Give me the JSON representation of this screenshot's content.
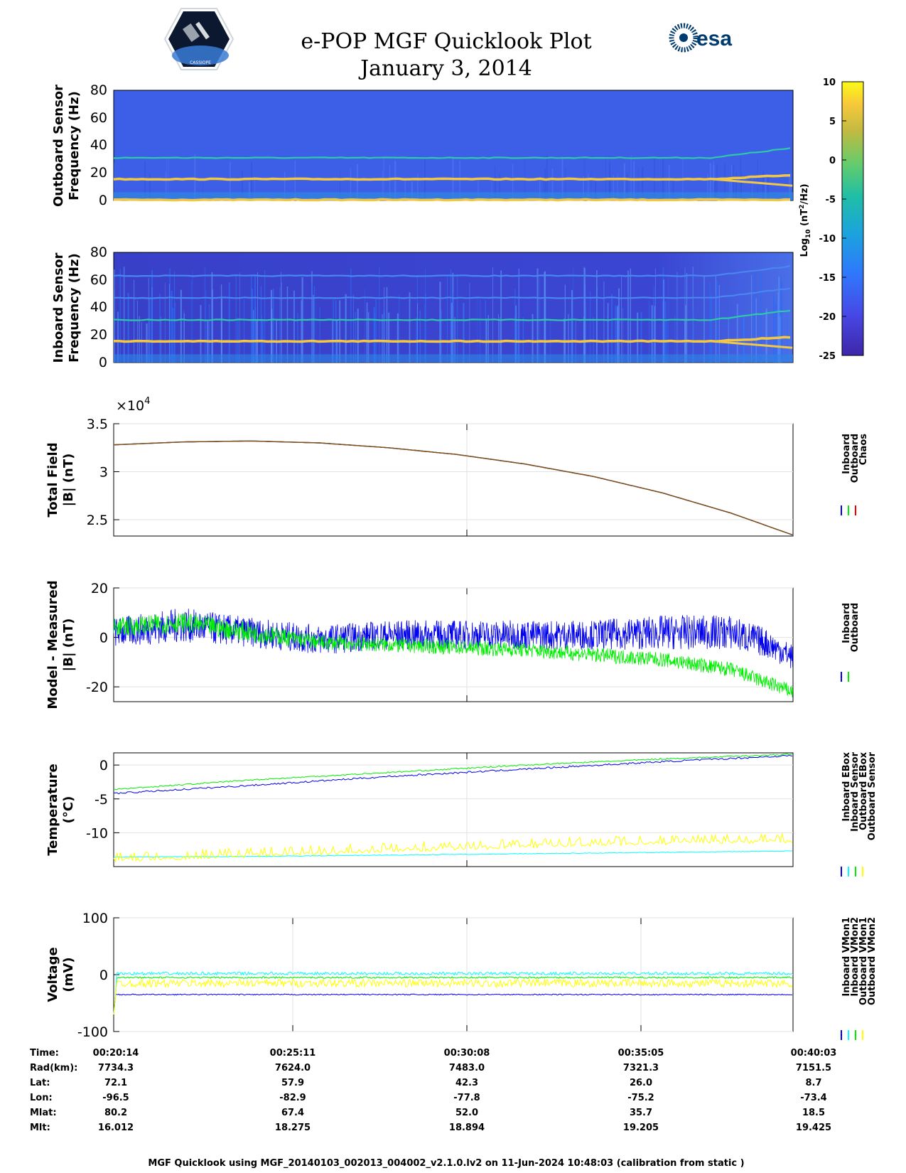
{
  "title": {
    "line1": "e-POP MGF Quicklook Plot",
    "line2": "January 3, 2014"
  },
  "logos": {
    "left_name": "cassiope",
    "left_text": "CASSIOPE",
    "right_text": "esa"
  },
  "colors": {
    "inboard": "#0000ee",
    "outboard": "#00ee00",
    "chaos": "#ee0000",
    "inboard_sensor": "#00ffff",
    "outboard_sensor": "#ffff00",
    "spec_bg": "#3d5fe8",
    "spec_bg_inboard": "#3b3fd0",
    "spec_line": "#f2c744",
    "spec_line2": "#2ec9a8"
  },
  "colorbar": {
    "ticks": [
      "10",
      "5",
      "0",
      "-5",
      "-10",
      "-15",
      "-20",
      "-25"
    ],
    "label": "Log10 (nT2/Hz)",
    "label_main": "Log",
    "label_sub": "10",
    "label_mid": " (nT",
    "label_sup": "2",
    "label_end": "/Hz)",
    "min": -25,
    "max": 10
  },
  "chart_data": [
    {
      "type": "heatmap",
      "id": "outboard_spectrogram",
      "ylabel1": "Outboard Sensor",
      "ylabel2": "Frequency (Hz)",
      "yticks": [
        "80",
        "60",
        "40",
        "20",
        "0"
      ],
      "ylim": [
        0,
        80
      ],
      "lines_hz": [
        {
          "f": 15.5,
          "color": "yellow"
        },
        {
          "f": 31,
          "color": "cyan"
        },
        {
          "f": 0.5,
          "color": "yellow"
        }
      ]
    },
    {
      "type": "heatmap",
      "id": "inboard_spectrogram",
      "ylabel1": "Inboard Sensor",
      "ylabel2": "Frequency (Hz)",
      "yticks": [
        "80",
        "60",
        "40",
        "20",
        "0"
      ],
      "ylim": [
        0,
        80
      ],
      "lines_hz": [
        {
          "f": 15.5,
          "color": "yellow"
        },
        {
          "f": 31,
          "color": "cyan"
        },
        {
          "f": 47,
          "color": "blue"
        },
        {
          "f": 63,
          "color": "blue"
        }
      ]
    },
    {
      "type": "line",
      "id": "total_field",
      "ylabel1": "Total Field",
      "ylabel2": "|B| (nT)",
      "exponent": "×10",
      "exponent_power": "4",
      "ylim": [
        2.33,
        3.5
      ],
      "yticks": [
        "3.5",
        "3",
        "2.5"
      ],
      "ytick_values": [
        3.5,
        3.0,
        2.5
      ],
      "x_minutes": [
        0,
        2,
        4,
        6,
        8,
        10,
        12,
        14,
        16,
        18,
        19.82
      ],
      "series": [
        {
          "name": "Inboard",
          "values": [
            3.28,
            3.31,
            3.32,
            3.3,
            3.25,
            3.18,
            3.08,
            2.95,
            2.78,
            2.57,
            2.34
          ]
        },
        {
          "name": "Outboard",
          "values": [
            3.28,
            3.31,
            3.32,
            3.3,
            3.25,
            3.18,
            3.08,
            2.95,
            2.78,
            2.57,
            2.34
          ]
        },
        {
          "name": "Chaos",
          "values": [
            3.28,
            3.31,
            3.32,
            3.3,
            3.25,
            3.18,
            3.08,
            2.95,
            2.78,
            2.57,
            2.34
          ]
        }
      ],
      "legend": [
        "Inboard",
        "Outboard",
        "Chaos"
      ]
    },
    {
      "type": "line",
      "id": "model_minus_measured",
      "ylabel1": "Model - Measured",
      "ylabel2": "|B| (nT)",
      "ylim": [
        -26,
        20
      ],
      "yticks": [
        "20",
        "0",
        "-20"
      ],
      "ytick_values": [
        20,
        0,
        -20
      ],
      "x_minutes": [
        0,
        2,
        4,
        6,
        8,
        10,
        12,
        14,
        16,
        18,
        19,
        19.82
      ],
      "series": [
        {
          "name": "Inboard",
          "center": [
            2,
            5,
            2,
            -1,
            1,
            1,
            1,
            1,
            2,
            2,
            -2,
            -8
          ],
          "spread": [
            6,
            7,
            6,
            6,
            6,
            6,
            6,
            6,
            7,
            7,
            6,
            5
          ]
        },
        {
          "name": "Outboard",
          "center": [
            4,
            6,
            2,
            -2,
            -3,
            -4,
            -5,
            -7,
            -9,
            -13,
            -18,
            -22
          ],
          "spread": [
            4,
            4,
            4,
            3,
            3,
            3,
            3,
            3,
            3,
            3,
            3,
            3
          ]
        }
      ],
      "legend": [
        "Inboard",
        "Outboard"
      ]
    },
    {
      "type": "line",
      "id": "temperature",
      "ylabel1": "Temperature",
      "ylabel2": "(°C)",
      "ylim": [
        -15,
        1.8
      ],
      "yticks": [
        "0",
        "-5",
        "-10"
      ],
      "ytick_values": [
        0,
        -5,
        -10
      ],
      "x_minutes": [
        0,
        4,
        8,
        12,
        16,
        19.82
      ],
      "series": [
        {
          "name": "Inboard EBox",
          "values": [
            -4.2,
            -3.0,
            -1.7,
            -0.6,
            0.5,
            1.4
          ]
        },
        {
          "name": "Inboard Sensor",
          "values": [
            -13.6,
            -13.5,
            -13.3,
            -13.1,
            -12.9,
            -12.7
          ]
        },
        {
          "name": "Outboard EBox",
          "values": [
            -3.6,
            -2.2,
            -1.1,
            0.0,
            0.9,
            1.6
          ]
        },
        {
          "name": "Outboard Sensor",
          "values": [
            -14.0,
            -13.4,
            -12.6,
            -12.0,
            -11.5,
            -11.2
          ]
        }
      ],
      "legend": [
        "Inboard EBox",
        "Inboard Sensor",
        "Outboard EBox",
        "Outboard Sensor"
      ]
    },
    {
      "type": "line",
      "id": "voltage",
      "ylabel1": "Voltage",
      "ylabel2": "(mV)",
      "ylim": [
        -100,
        100
      ],
      "yticks": [
        "100",
        "0",
        "-100"
      ],
      "ytick_values": [
        100,
        0,
        -100
      ],
      "x_minutes": [
        0,
        19.82
      ],
      "series": [
        {
          "name": "Inboard VMon1",
          "values": [
            -35,
            -35
          ]
        },
        {
          "name": "Inboard VMon2",
          "values": [
            2,
            2
          ]
        },
        {
          "name": "Outboard VMon1",
          "values": [
            -5,
            -5
          ]
        },
        {
          "name": "Outboard VMon2",
          "values": [
            -15,
            -15
          ]
        }
      ],
      "legend": [
        "Inboard VMon1",
        "Inboard VMon2",
        "Outboard VMon1",
        "Outboard VMon2"
      ]
    }
  ],
  "ephemeris": {
    "rows": [
      {
        "label": "Time:",
        "values": [
          "00:20:14",
          "00:25:11",
          "00:30:08",
          "00:35:05",
          "00:40:03"
        ]
      },
      {
        "label": "Rad(km):",
        "values": [
          "7734.3",
          "7624.0",
          "7483.0",
          "7321.3",
          "7151.5"
        ]
      },
      {
        "label": "Lat:",
        "values": [
          "72.1",
          "57.9",
          "42.3",
          "26.0",
          "8.7"
        ]
      },
      {
        "label": "Lon:",
        "values": [
          "-96.5",
          "-82.9",
          "-77.8",
          "-75.2",
          "-73.4"
        ]
      },
      {
        "label": "Mlat:",
        "values": [
          "80.2",
          "67.4",
          "52.0",
          "35.7",
          "18.5"
        ]
      },
      {
        "label": "Mlt:",
        "values": [
          "16.012",
          "18.275",
          "18.894",
          "19.205",
          "19.425"
        ]
      }
    ]
  },
  "footer": "MGF Quicklook using MGF_20140103_002013_004002_v2.1.0.lv2 on 11-Jun-2024 10:48:03 (calibration from static )"
}
